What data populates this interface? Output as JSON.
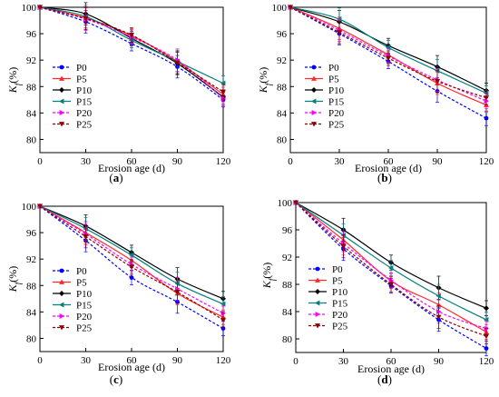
{
  "chart_data": [
    {
      "type": "line",
      "panel_label": "(a)",
      "panel_letter": "a",
      "xlabel": "Erosion age (d)",
      "ylabel": "Kf(%)",
      "x": [
        0,
        30,
        60,
        90,
        120
      ],
      "xticks": [
        0,
        30,
        60,
        90,
        120
      ],
      "yticks": [
        80,
        84,
        88,
        92,
        96,
        100
      ],
      "xlim": [
        0,
        120
      ],
      "ylim": [
        78,
        100
      ],
      "legend_position": "lower-left",
      "series": [
        {
          "name": "P0",
          "values": [
            100,
            97.8,
            94.5,
            91.0,
            86.0
          ]
        },
        {
          "name": "P5",
          "values": [
            100,
            98.4,
            95.7,
            91.8,
            86.8
          ]
        },
        {
          "name": "P10",
          "values": [
            100,
            99.0,
            95.3,
            91.5,
            86.4
          ]
        },
        {
          "name": "P15",
          "values": [
            100,
            98.6,
            95.0,
            91.8,
            88.5
          ]
        },
        {
          "name": "P20",
          "values": [
            100,
            98.2,
            95.5,
            92.0,
            86.2
          ]
        },
        {
          "name": "P25",
          "values": [
            100,
            98.3,
            95.8,
            91.6,
            87.2
          ]
        }
      ]
    },
    {
      "type": "line",
      "panel_label": "(b)",
      "panel_letter": "b",
      "xlabel": "Erosion age (d)",
      "ylabel": "Kf(%)",
      "x": [
        0,
        30,
        60,
        90,
        120
      ],
      "xticks": [
        0,
        30,
        60,
        90,
        120
      ],
      "yticks": [
        80,
        84,
        88,
        92,
        96,
        100
      ],
      "xlim": [
        0,
        120
      ],
      "ylim": [
        78,
        100
      ],
      "legend_position": "lower-left",
      "series": [
        {
          "name": "P0",
          "values": [
            100,
            96.0,
            91.8,
            87.3,
            83.2
          ]
        },
        {
          "name": "P5",
          "values": [
            100,
            96.8,
            92.8,
            88.5,
            85.2
          ]
        },
        {
          "name": "P10",
          "values": [
            100,
            97.8,
            94.2,
            91.0,
            87.4
          ]
        },
        {
          "name": "P15",
          "values": [
            100,
            98.2,
            93.9,
            90.4,
            87.0
          ]
        },
        {
          "name": "P20",
          "values": [
            100,
            96.5,
            92.6,
            89.0,
            85.8
          ]
        },
        {
          "name": "P25",
          "values": [
            100,
            96.2,
            92.3,
            88.8,
            86.3
          ]
        }
      ]
    },
    {
      "type": "line",
      "panel_label": "(c)",
      "panel_letter": "c",
      "xlabel": "Erosion age (d)",
      "ylabel": "Kf(%)",
      "x": [
        0,
        30,
        60,
        90,
        120
      ],
      "xticks": [
        0,
        30,
        60,
        90,
        120
      ],
      "yticks": [
        80,
        84,
        88,
        92,
        96,
        100
      ],
      "xlim": [
        0,
        120
      ],
      "ylim": [
        78,
        100
      ],
      "legend_position": "lower-left",
      "series": [
        {
          "name": "P0",
          "values": [
            100,
            94.8,
            89.2,
            85.5,
            81.5
          ]
        },
        {
          "name": "P5",
          "values": [
            100,
            96.0,
            91.8,
            86.8,
            83.2
          ]
        },
        {
          "name": "P10",
          "values": [
            100,
            97.0,
            93.0,
            89.0,
            86.0
          ]
        },
        {
          "name": "P15",
          "values": [
            100,
            96.6,
            92.6,
            88.3,
            85.2
          ]
        },
        {
          "name": "P20",
          "values": [
            100,
            95.8,
            91.2,
            87.5,
            83.8
          ]
        },
        {
          "name": "P25",
          "values": [
            100,
            95.4,
            90.8,
            87.0,
            82.8
          ]
        }
      ]
    },
    {
      "type": "line",
      "panel_label": "(d)",
      "panel_letter": "d",
      "xlabel": "Erosion age (d)",
      "ylabel": "Kf(%)",
      "x": [
        0,
        30,
        60,
        90,
        120
      ],
      "xticks": [
        0,
        30,
        60,
        90,
        120
      ],
      "yticks": [
        80,
        84,
        88,
        92,
        96,
        100
      ],
      "xlim": [
        0,
        120
      ],
      "ylim": [
        78,
        100
      ],
      "legend_position": "lower-left",
      "series": [
        {
          "name": "P0",
          "values": [
            100,
            93.2,
            87.8,
            82.8,
            78.6
          ]
        },
        {
          "name": "P5",
          "values": [
            100,
            94.5,
            88.5,
            85.0,
            81.0
          ]
        },
        {
          "name": "P10",
          "values": [
            100,
            96.0,
            91.2,
            87.5,
            84.5
          ]
        },
        {
          "name": "P15",
          "values": [
            100,
            95.2,
            90.4,
            86.3,
            82.8
          ]
        },
        {
          "name": "P20",
          "values": [
            100,
            94.0,
            88.6,
            84.0,
            81.5
          ]
        },
        {
          "name": "P25",
          "values": [
            100,
            93.6,
            88.0,
            83.2,
            80.4
          ]
        }
      ]
    }
  ],
  "series_styles": [
    {
      "name": "P0",
      "color": "#0000ff",
      "marker": "circle",
      "dash": "dashed"
    },
    {
      "name": "P5",
      "color": "#ff2a2a",
      "marker": "triangle-up",
      "dash": "solid"
    },
    {
      "name": "P10",
      "color": "#000000",
      "marker": "diamond",
      "dash": "solid"
    },
    {
      "name": "P15",
      "color": "#008080",
      "marker": "triangle-left",
      "dash": "solid"
    },
    {
      "name": "P20",
      "color": "#ff00ff",
      "marker": "triangle-right",
      "dash": "dashed"
    },
    {
      "name": "P25",
      "color": "#8b0000",
      "marker": "triangle-down",
      "dash": "dashed"
    }
  ],
  "ylabel_main": "K",
  "ylabel_sub": "f",
  "ylabel_suffix": "(%)",
  "grid": false
}
